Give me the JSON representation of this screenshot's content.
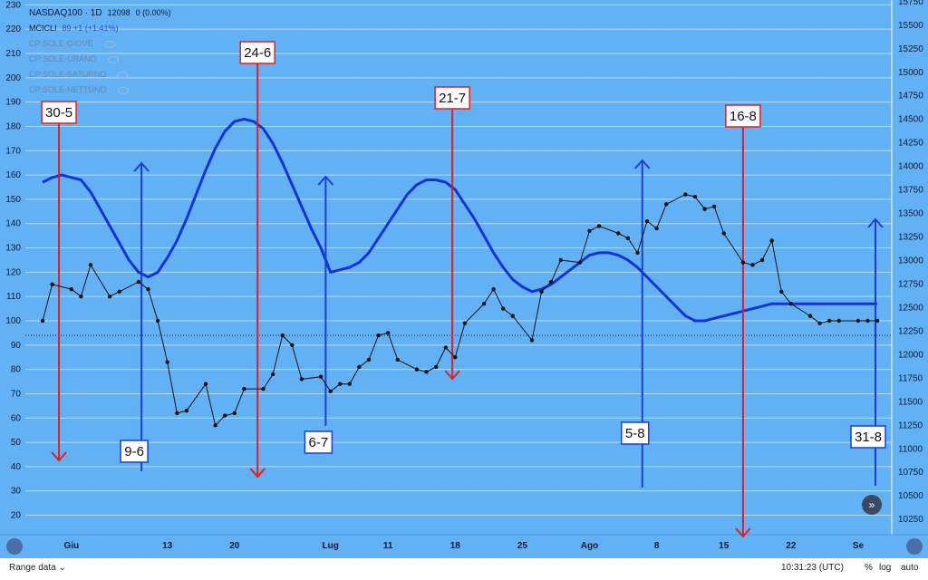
{
  "legend": {
    "symbol": "NASDAQ100 · 1D",
    "price": "12098",
    "change": "0 (0.00%)",
    "indicator": "MCICLI",
    "indicator_value": "89 +1 (+1.41%)",
    "cp_items": [
      "CP:SOLE-GIOVE",
      "CP:SOLE-URANO",
      "CP:SOLE-SATURNO",
      "CP:SOLE-NETTUNO"
    ]
  },
  "bottom": {
    "range_label": "Range data",
    "time": "10:31:23 (UTC)",
    "percent": "%",
    "log": "log",
    "auto": "auto"
  },
  "colors": {
    "background": "#62b1f4",
    "cycle_line": "#1532d6",
    "price_line": "#111111",
    "red_marker": "#e41e1e",
    "blue_marker": "#1a3fd4"
  },
  "chart_data": {
    "type": "line",
    "x_tick_labels": [
      {
        "x": 2,
        "label": "Giu"
      },
      {
        "x": 12,
        "label": "13"
      },
      {
        "x": 19,
        "label": "20"
      },
      {
        "x": 29,
        "label": "Lug"
      },
      {
        "x": 35,
        "label": "11"
      },
      {
        "x": 42,
        "label": "18"
      },
      {
        "x": 49,
        "label": "25"
      },
      {
        "x": 56,
        "label": "Ago"
      },
      {
        "x": 63,
        "label": "8"
      },
      {
        "x": 70,
        "label": "15"
      },
      {
        "x": 77,
        "label": "22"
      },
      {
        "x": 84,
        "label": "Se"
      }
    ],
    "xlim": [
      -2.8,
      87.5
    ],
    "left_axis": {
      "ylim": [
        12,
        232
      ],
      "ticks": [
        20,
        30,
        40,
        50,
        60,
        70,
        80,
        90,
        100,
        110,
        120,
        130,
        140,
        150,
        160,
        170,
        180,
        190,
        200,
        210,
        220,
        230
      ]
    },
    "right_axis": {
      "ylim": [
        10088,
        15768
      ],
      "ticks": [
        10250,
        10500,
        10750,
        11000,
        11250,
        11500,
        11750,
        12000,
        12250,
        12500,
        12750,
        13000,
        13250,
        13500,
        13750,
        14000,
        14250,
        14500,
        14750,
        15000,
        15250,
        15500,
        15750
      ]
    },
    "price_series": {
      "name": "NASDAQ100",
      "axis": "left",
      "x": [
        -1,
        0,
        2,
        3,
        4,
        6,
        7,
        9,
        10,
        11,
        12,
        13,
        14,
        16,
        17,
        18,
        19,
        20,
        22,
        23,
        24,
        25,
        26,
        28,
        29,
        30,
        31,
        32,
        33,
        34,
        35,
        36,
        38,
        39,
        40,
        41,
        42,
        43,
        45,
        46,
        47,
        48,
        50,
        51,
        52,
        53,
        55,
        56,
        57,
        59,
        60,
        61,
        62,
        63,
        64,
        66,
        67,
        68,
        69,
        70,
        72,
        73,
        74,
        75,
        76,
        77,
        79,
        80,
        81,
        82,
        84,
        85,
        86
      ],
      "values": [
        100,
        115,
        113,
        110,
        123,
        110,
        112,
        116,
        113,
        100,
        83,
        62,
        63,
        74,
        57,
        61,
        62,
        72,
        72,
        78,
        94,
        90,
        76,
        77,
        71,
        74,
        74,
        81,
        84,
        94,
        95,
        84,
        80,
        79,
        81,
        89,
        85,
        99,
        107,
        113,
        105,
        102,
        92,
        112,
        116,
        125,
        124,
        137,
        139,
        136,
        134,
        128,
        141,
        138,
        148,
        152,
        151,
        146,
        147,
        136,
        124,
        123,
        125,
        133,
        112,
        107,
        102,
        99,
        100,
        100,
        100,
        100,
        100
      ]
    },
    "cycle_series": {
      "name": "MCICLI",
      "axis": "left",
      "x": [
        -1,
        0,
        1,
        2,
        3,
        4,
        5,
        6,
        7,
        8,
        9,
        10,
        11,
        12,
        13,
        14,
        15,
        16,
        17,
        18,
        19,
        20,
        21,
        22,
        23,
        24,
        25,
        26,
        27,
        28,
        29,
        30,
        31,
        32,
        33,
        34,
        35,
        36,
        37,
        38,
        39,
        40,
        41,
        42,
        43,
        44,
        45,
        46,
        47,
        48,
        49,
        50,
        51,
        52,
        53,
        54,
        55,
        56,
        57,
        58,
        59,
        60,
        61,
        62,
        63,
        64,
        65,
        66,
        67,
        68,
        69,
        70,
        71,
        72,
        73,
        74,
        75,
        76,
        77,
        78,
        79,
        80,
        81,
        82,
        83,
        84,
        85,
        86
      ],
      "values": [
        157,
        159,
        160,
        159,
        158,
        153,
        146,
        139,
        132,
        125,
        120,
        118,
        120,
        126,
        133,
        142,
        152,
        162,
        171,
        178,
        182,
        183,
        182,
        179,
        173,
        165,
        156,
        147,
        138,
        130,
        120,
        121,
        122,
        124,
        128,
        134,
        140,
        146,
        152,
        156,
        158,
        158,
        157,
        154,
        148,
        142,
        135,
        128,
        122,
        117,
        114,
        112,
        113,
        115,
        118,
        121,
        124,
        127,
        128,
        128,
        127,
        125,
        122,
        118,
        114,
        110,
        106,
        102,
        100,
        100,
        101,
        102,
        103,
        104,
        105,
        106,
        107,
        107,
        107,
        107,
        107,
        107,
        107,
        107,
        107,
        107,
        107,
        107
      ]
    },
    "markers": [
      {
        "label": "30-5",
        "color": "red",
        "x": 0.7,
        "dir": "down"
      },
      {
        "label": "9-6",
        "color": "blue",
        "x": 9.3,
        "dir": "up"
      },
      {
        "label": "24-6",
        "color": "red",
        "x": 21.4,
        "dir": "down"
      },
      {
        "label": "6-7",
        "color": "blue",
        "x": 28.5,
        "dir": "up"
      },
      {
        "label": "21-7",
        "color": "red",
        "x": 41.7,
        "dir": "down"
      },
      {
        "label": "5-8",
        "color": "blue",
        "x": 61.5,
        "dir": "up"
      },
      {
        "label": "16-8",
        "color": "red",
        "x": 72.0,
        "dir": "down"
      },
      {
        "label": "31-8",
        "color": "blue",
        "x": 85.8,
        "dir": "up"
      }
    ],
    "reference_line": {
      "style": "dotted",
      "value": 94
    },
    "grid": true
  }
}
